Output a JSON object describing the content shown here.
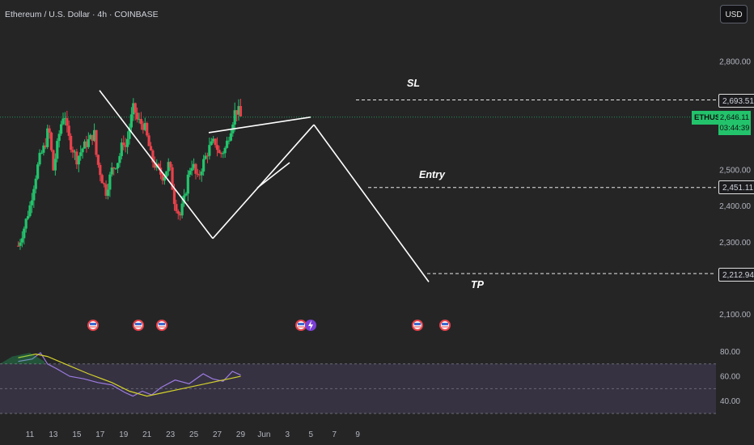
{
  "header": {
    "title": "Ethereum / U.S. Dollar · 4h · COINBASE",
    "currency_button": "USD"
  },
  "colors": {
    "background": "#252526",
    "bull": "#22c36b",
    "bear": "#e8414a",
    "rsi_line": "#9c7be0",
    "rsi_ma": "#d4d12b",
    "rsi_band": "#3a3548",
    "pattern_line": "#ffffff"
  },
  "price_axis": {
    "ticks": [
      {
        "value": 2800,
        "label": "2,800.00"
      },
      {
        "value": 2500,
        "label": "2,500.00"
      },
      {
        "value": 2400,
        "label": "2,400.00"
      },
      {
        "value": 2300,
        "label": "2,300.00"
      },
      {
        "value": 2100,
        "label": "2,100.00"
      }
    ]
  },
  "levels": {
    "sl": {
      "label": "SL",
      "price_label": "2,693.51",
      "value": 2693.51
    },
    "entry": {
      "label": "Entry",
      "price_label": "2,451.11",
      "value": 2451.11
    },
    "tp": {
      "label": "TP",
      "price_label": "2,212.94",
      "value": 2212.94
    }
  },
  "last_price": {
    "symbol": "ETHUSD",
    "price": "2,646.11",
    "countdown": "03:44:39"
  },
  "rsi_axis": {
    "ticks": [
      {
        "value": 80,
        "label": "80.00"
      },
      {
        "value": 60,
        "label": "60.00"
      },
      {
        "value": 40,
        "label": "40.00"
      }
    ],
    "upper_band": 70,
    "lower_band": 30
  },
  "time_axis": {
    "labels": [
      "11",
      "13",
      "15",
      "17",
      "19",
      "21",
      "23",
      "25",
      "27",
      "29",
      "Jun",
      "3",
      "5",
      "7",
      "9"
    ]
  },
  "event_markers": {
    "icon": "us-flag-icon",
    "special_icon": "lightning-icon"
  },
  "chart_data": {
    "type": "candlestick",
    "symbol": "ETHUSD",
    "exchange": "COINBASE",
    "interval": "4h",
    "x_axis": [
      "11",
      "13",
      "15",
      "17",
      "19",
      "21",
      "23",
      "25",
      "27",
      "29",
      "Jun",
      "3",
      "5",
      "7",
      "9"
    ],
    "y_range": [
      2070,
      2970
    ],
    "key_points": [
      {
        "label": "high",
        "date": "13",
        "value": 2730
      },
      {
        "label": "low",
        "date": "18",
        "value": 2310
      },
      {
        "label": "last",
        "date": "23",
        "value": 2646.11
      }
    ],
    "projection": [
      {
        "date": "23",
        "value": 2625
      },
      {
        "date": "28",
        "value": 2190
      }
    ],
    "levels": [
      {
        "name": "SL",
        "value": 2693.51
      },
      {
        "name": "Entry",
        "value": 2451.11
      },
      {
        "name": "TP",
        "value": 2212.94
      }
    ],
    "rsi_range": [
      30,
      85
    ]
  }
}
